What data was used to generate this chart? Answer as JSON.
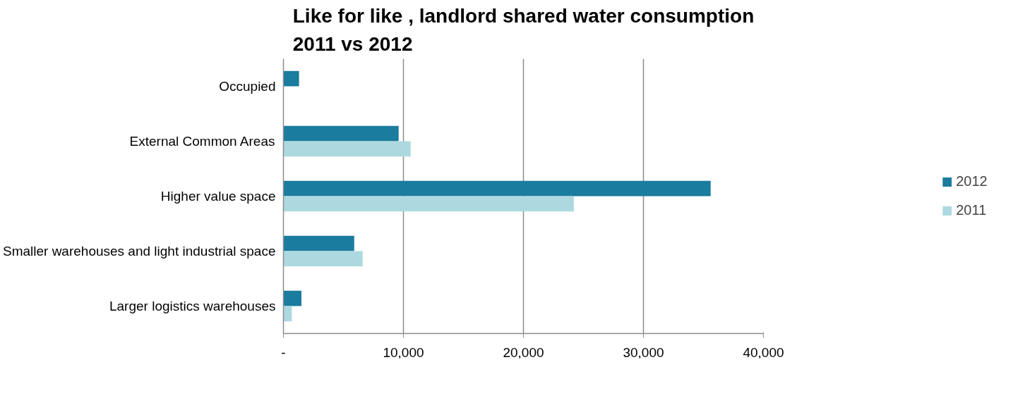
{
  "chart_data": {
    "type": "bar",
    "orientation": "horizontal",
    "title": "Like for like , landlord shared water consumption\n2011 vs 2012",
    "categories": [
      "Occupied",
      "External Common Areas",
      "Higher value space",
      "Smaller warehouses and light industrial space",
      "Larger logistics warehouses"
    ],
    "series": [
      {
        "name": "2012",
        "color": "#1a7c9e",
        "values": [
          1300,
          9600,
          35600,
          5900,
          1500
        ]
      },
      {
        "name": "2011",
        "color": "#acd9df",
        "values": [
          null,
          10600,
          24200,
          6600,
          700
        ]
      }
    ],
    "xlim": [
      0,
      40000
    ],
    "xticks": [
      {
        "value": 0,
        "label": "-"
      },
      {
        "value": 10000,
        "label": "10,000"
      },
      {
        "value": 20000,
        "label": "20,000"
      },
      {
        "value": 30000,
        "label": "30,000"
      },
      {
        "value": 40000,
        "label": "40,000"
      }
    ],
    "grid": "x",
    "legend": "right"
  }
}
